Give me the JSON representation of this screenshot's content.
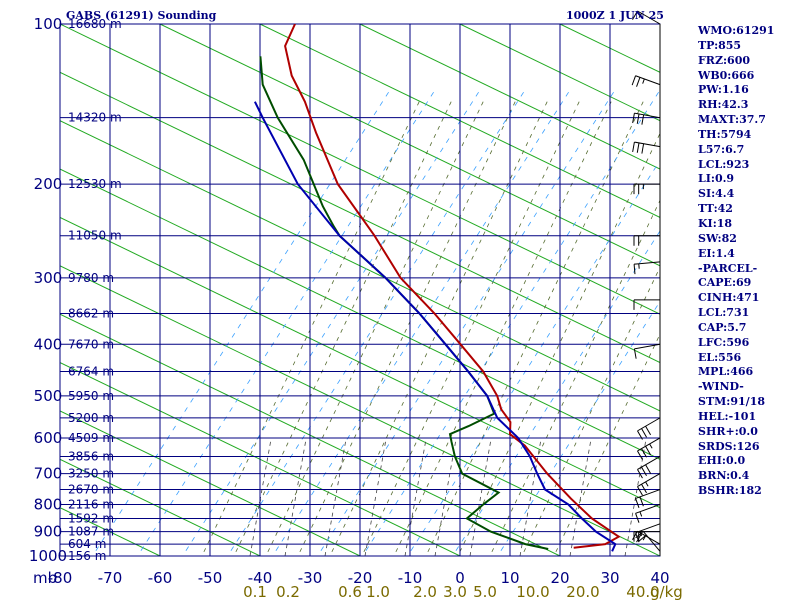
{
  "header": {
    "station": "GABS (61291) Sounding",
    "time": "1000Z  1 JUN 25"
  },
  "stats": [
    "WMO:61291",
    "TP:855",
    "FRZ:600",
    "WB0:666",
    "PW:1.16",
    "RH:42.3",
    "MAXT:37.7",
    "TH:5794",
    "L57:6.7",
    "LCL:923",
    "LI:0.9",
    "SI:4.4",
    "TT:42",
    "KI:18",
    "SW:82",
    "EI:1.4",
    "-PARCEL-",
    "CAPE:69",
    "CINH:471",
    "LCL:731",
    "CAP:5.7",
    "LFC:596",
    "EL:556",
    "MPL:466",
    "-WIND-",
    "STM:91/18",
    "HEL:-101",
    "SHR+:0.0",
    "SRDS:126",
    "EHI:0.0",
    "BRN:0.4",
    "BSHR:182"
  ],
  "chart_data": {
    "type": "line",
    "title": "GABS (61291) Sounding",
    "pressure_levels": [
      100,
      200,
      300,
      400,
      500,
      600,
      700,
      800,
      900,
      1000
    ],
    "pressure_units_label": "mb",
    "temperature_ticks": [
      -80,
      -70,
      -60,
      -50,
      -40,
      -30,
      -20,
      -10,
      0,
      10,
      20,
      30,
      40
    ],
    "mixing_ratio_labels": [
      "0.1",
      "0.2",
      "0.6",
      "1.0",
      "2.0",
      "3.0",
      "5.0",
      "10.0",
      "20.0",
      "40.0"
    ],
    "mixing_ratio_unit": "g/kg",
    "height_labels": [
      {
        "p": 100,
        "text": "16680 m"
      },
      {
        "p": 150,
        "text": "14320 m"
      },
      {
        "p": 200,
        "text": "12530 m"
      },
      {
        "p": 250,
        "text": "11050 m"
      },
      {
        "p": 300,
        "text": "9780 m"
      },
      {
        "p": 350,
        "text": "8662 m"
      },
      {
        "p": 400,
        "text": "7670 m"
      },
      {
        "p": 450,
        "text": "6764 m"
      },
      {
        "p": 500,
        "text": "5950 m"
      },
      {
        "p": 550,
        "text": "5200 m"
      },
      {
        "p": 600,
        "text": "4509 m"
      },
      {
        "p": 650,
        "text": "3856 m"
      },
      {
        "p": 700,
        "text": "3250 m"
      },
      {
        "p": 750,
        "text": "2670 m"
      },
      {
        "p": 800,
        "text": "2116 m"
      },
      {
        "p": 850,
        "text": "1592 m"
      },
      {
        "p": 900,
        "text": "1087 m"
      },
      {
        "p": 950,
        "text": "604 m"
      },
      {
        "p": 1000,
        "text": "156 m"
      }
    ],
    "series": [
      {
        "color": "#b00000",
        "points": [
          {
            "p": 100,
            "t": -81
          },
          {
            "p": 110,
            "t": -81
          },
          {
            "p": 125,
            "t": -77
          },
          {
            "p": 140,
            "t": -72
          },
          {
            "p": 160,
            "t": -67
          },
          {
            "p": 200,
            "t": -58
          },
          {
            "p": 250,
            "t": -46
          },
          {
            "p": 300,
            "t": -37
          },
          {
            "p": 350,
            "t": -27
          },
          {
            "p": 400,
            "t": -19
          },
          {
            "p": 450,
            "t": -12
          },
          {
            "p": 500,
            "t": -7
          },
          {
            "p": 530,
            "t": -5
          },
          {
            "p": 560,
            "t": -2
          },
          {
            "p": 590,
            "t": -1
          },
          {
            "p": 620,
            "t": 3
          },
          {
            "p": 700,
            "t": 10
          },
          {
            "p": 780,
            "t": 17
          },
          {
            "p": 850,
            "t": 23
          },
          {
            "p": 920,
            "t": 30
          },
          {
            "p": 950,
            "t": 28
          },
          {
            "p": 965,
            "t": 22
          }
        ]
      },
      {
        "color": "#004d00",
        "points": [
          {
            "p": 115,
            "t": -85
          },
          {
            "p": 130,
            "t": -82
          },
          {
            "p": 150,
            "t": -76
          },
          {
            "p": 180,
            "t": -67
          },
          {
            "p": 220,
            "t": -59
          },
          {
            "p": 240,
            "t": -55
          },
          {
            "p": 250,
            "t": -53
          },
          {
            "p": 300,
            "t": -40
          },
          {
            "p": 350,
            "t": -30
          },
          {
            "p": 400,
            "t": -22
          },
          {
            "p": 450,
            "t": -15
          },
          {
            "p": 500,
            "t": -9
          },
          {
            "p": 540,
            "t": -6
          },
          {
            "p": 570,
            "t": -10
          },
          {
            "p": 590,
            "t": -13
          },
          {
            "p": 610,
            "t": -12
          },
          {
            "p": 650,
            "t": -10
          },
          {
            "p": 700,
            "t": -7
          },
          {
            "p": 760,
            "t": 2
          },
          {
            "p": 800,
            "t": 0
          },
          {
            "p": 850,
            "t": -2
          },
          {
            "p": 900,
            "t": 4
          },
          {
            "p": 950,
            "t": 12
          },
          {
            "p": 970,
            "t": 17
          }
        ]
      },
      {
        "color": "#0000b0",
        "points": [
          {
            "p": 140,
            "t": -82
          },
          {
            "p": 150,
            "t": -79
          },
          {
            "p": 200,
            "t": -66
          },
          {
            "p": 250,
            "t": -53
          },
          {
            "p": 300,
            "t": -40
          },
          {
            "p": 350,
            "t": -30
          },
          {
            "p": 400,
            "t": -22
          },
          {
            "p": 450,
            "t": -15
          },
          {
            "p": 500,
            "t": -9
          },
          {
            "p": 550,
            "t": -5
          },
          {
            "p": 600,
            "t": 1
          },
          {
            "p": 650,
            "t": 5
          },
          {
            "p": 700,
            "t": 8
          },
          {
            "p": 750,
            "t": 11
          },
          {
            "p": 800,
            "t": 17
          },
          {
            "p": 850,
            "t": 21
          },
          {
            "p": 900,
            "t": 25
          },
          {
            "p": 950,
            "t": 30
          },
          {
            "p": 980,
            "t": 30
          }
        ]
      }
    ],
    "wind_barbs": [
      {
        "p": 100,
        "dir": 300,
        "spd": 15
      },
      {
        "p": 130,
        "dir": 290,
        "spd": 25
      },
      {
        "p": 150,
        "dir": 280,
        "spd": 30
      },
      {
        "p": 170,
        "dir": 280,
        "spd": 30
      },
      {
        "p": 200,
        "dir": 270,
        "spd": 25
      },
      {
        "p": 250,
        "dir": 270,
        "spd": 20
      },
      {
        "p": 280,
        "dir": 265,
        "spd": 15
      },
      {
        "p": 330,
        "dir": 270,
        "spd": 10
      },
      {
        "p": 400,
        "dir": 260,
        "spd": 10
      },
      {
        "p": 550,
        "dir": 240,
        "spd": 30
      },
      {
        "p": 600,
        "dir": 240,
        "spd": 35
      },
      {
        "p": 650,
        "dir": 240,
        "spd": 30
      },
      {
        "p": 700,
        "dir": 240,
        "spd": 25
      },
      {
        "p": 750,
        "dir": 250,
        "spd": 20
      },
      {
        "p": 800,
        "dir": 250,
        "spd": 15
      },
      {
        "p": 870,
        "dir": 250,
        "spd": 15
      },
      {
        "p": 900,
        "dir": 270,
        "spd": 20
      },
      {
        "p": 950,
        "dir": 300,
        "spd": 25
      },
      {
        "p": 980,
        "dir": 320,
        "spd": 20
      }
    ]
  }
}
